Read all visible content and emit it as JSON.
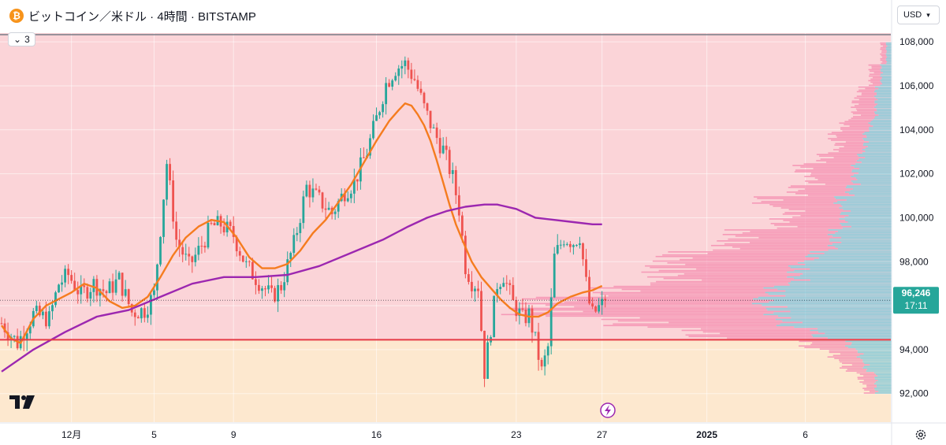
{
  "header": {
    "title": "ビットコイン／米ドル · 4時間 · BITSTAMP",
    "indicator_count": "3",
    "currency": "USD"
  },
  "price_badge": {
    "price": "96,246",
    "countdown": "17:11"
  },
  "colors": {
    "up": "#26a69a",
    "down": "#ef5350",
    "ma_orange": "#f57c1f",
    "ma_purple": "#9c27b0",
    "zone_upper": "#fbd4d8",
    "zone_lower": "#fde8cf",
    "level_line": "#e53945",
    "vp_down": "#f48fb1",
    "vp_up": "#7fc8d8"
  },
  "chart_data": {
    "type": "candlestick",
    "title": "ビットコイン／米ドル · 4時間 · BITSTAMP",
    "xlabel": "",
    "ylabel": "",
    "ylim": [
      90700,
      108400
    ],
    "y_ticks": [
      "92,000",
      "94,000",
      "96,000",
      "98,000",
      "100,000",
      "102,000",
      "104,000",
      "106,000",
      "108,000"
    ],
    "y_tick_values": [
      92000,
      94000,
      96000,
      98000,
      100000,
      102000,
      104000,
      106000,
      108000
    ],
    "x_ticks": [
      "12月",
      "5",
      "9",
      "16",
      "23",
      "27",
      "2025",
      "6"
    ],
    "x_tick_index": [
      22,
      48,
      73,
      118,
      162,
      189,
      222,
      253
    ],
    "last_price": 96246,
    "horizontal_levels": [
      108330,
      94450
    ],
    "background_zone_boundary": 94450,
    "close_path": [
      [
        0,
        95200
      ],
      [
        5,
        94300
      ],
      [
        10,
        95600
      ],
      [
        15,
        95400
      ],
      [
        18,
        97000
      ],
      [
        21,
        97400
      ],
      [
        25,
        96500
      ],
      [
        29,
        97000
      ],
      [
        33,
        96600
      ],
      [
        37,
        97200
      ],
      [
        41,
        95700
      ],
      [
        45,
        95800
      ],
      [
        48,
        96500
      ],
      [
        52,
        102500
      ],
      [
        55,
        99000
      ],
      [
        59,
        97800
      ],
      [
        62,
        98500
      ],
      [
        66,
        99600
      ],
      [
        69,
        99700
      ],
      [
        73,
        99200
      ],
      [
        77,
        97800
      ],
      [
        81,
        97100
      ],
      [
        85,
        96400
      ],
      [
        88,
        96900
      ],
      [
        92,
        98800
      ],
      [
        96,
        101400
      ],
      [
        100,
        100800
      ],
      [
        104,
        100200
      ],
      [
        108,
        101200
      ],
      [
        111,
        101600
      ],
      [
        115,
        103000
      ],
      [
        118,
        104500
      ],
      [
        121,
        106100
      ],
      [
        124,
        106800
      ],
      [
        127,
        107000
      ],
      [
        130,
        106300
      ],
      [
        133,
        105000
      ],
      [
        136,
        103900
      ],
      [
        139,
        103100
      ],
      [
        142,
        101800
      ],
      [
        144,
        100400
      ],
      [
        146,
        97800
      ],
      [
        148,
        97100
      ],
      [
        150,
        96900
      ],
      [
        152,
        93000
      ],
      [
        154,
        95000
      ],
      [
        156,
        97000
      ],
      [
        158,
        97400
      ],
      [
        161,
        96100
      ],
      [
        164,
        95400
      ],
      [
        166,
        95600
      ],
      [
        168,
        94400
      ],
      [
        170,
        93000
      ],
      [
        172,
        94100
      ],
      [
        174,
        98200
      ],
      [
        177,
        99100
      ],
      [
        180,
        98900
      ],
      [
        182,
        99200
      ],
      [
        184,
        97000
      ],
      [
        185,
        96100
      ],
      [
        186,
        95600
      ],
      [
        188,
        95900
      ],
      [
        190,
        96200
      ]
    ],
    "series": [
      {
        "name": "",
        "type": "moving-average",
        "points": [
          [
            0,
            95100
          ],
          [
            3,
            94500
          ],
          [
            6,
            94300
          ],
          [
            10,
            95400
          ],
          [
            14,
            96000
          ],
          [
            18,
            96300
          ],
          [
            22,
            96600
          ],
          [
            26,
            97000
          ],
          [
            30,
            96800
          ],
          [
            34,
            96200
          ],
          [
            38,
            95900
          ],
          [
            42,
            96000
          ],
          [
            46,
            96400
          ],
          [
            50,
            97300
          ],
          [
            54,
            98300
          ],
          [
            58,
            99100
          ],
          [
            62,
            99600
          ],
          [
            66,
            99900
          ],
          [
            70,
            99800
          ],
          [
            74,
            99100
          ],
          [
            78,
            98200
          ],
          [
            82,
            97700
          ],
          [
            86,
            97700
          ],
          [
            90,
            97900
          ],
          [
            94,
            98500
          ],
          [
            98,
            99300
          ],
          [
            102,
            99900
          ],
          [
            106,
            100700
          ],
          [
            110,
            101500
          ],
          [
            114,
            102500
          ],
          [
            118,
            103500
          ],
          [
            122,
            104400
          ],
          [
            125,
            104900
          ],
          [
            127,
            105200
          ],
          [
            129,
            105100
          ],
          [
            131,
            104700
          ],
          [
            133,
            104200
          ],
          [
            135,
            103500
          ],
          [
            137,
            102600
          ],
          [
            139,
            101600
          ],
          [
            141,
            100600
          ],
          [
            143,
            99700
          ],
          [
            145,
            99000
          ],
          [
            148,
            98000
          ],
          [
            151,
            97300
          ],
          [
            154,
            96800
          ],
          [
            157,
            96300
          ],
          [
            160,
            95900
          ],
          [
            163,
            95600
          ],
          [
            166,
            95500
          ],
          [
            169,
            95500
          ],
          [
            172,
            95700
          ],
          [
            175,
            96100
          ],
          [
            179,
            96400
          ],
          [
            183,
            96600
          ],
          [
            186,
            96700
          ],
          [
            189,
            96900
          ]
        ]
      },
      {
        "name": "",
        "type": "moving-average",
        "points": [
          [
            0,
            93000
          ],
          [
            10,
            94000
          ],
          [
            20,
            94800
          ],
          [
            30,
            95500
          ],
          [
            40,
            95800
          ],
          [
            50,
            96400
          ],
          [
            60,
            97000
          ],
          [
            70,
            97300
          ],
          [
            80,
            97300
          ],
          [
            90,
            97400
          ],
          [
            100,
            97800
          ],
          [
            110,
            98400
          ],
          [
            120,
            99000
          ],
          [
            128,
            99600
          ],
          [
            134,
            100000
          ],
          [
            140,
            100300
          ],
          [
            146,
            100500
          ],
          [
            152,
            100600
          ],
          [
            156,
            100600
          ],
          [
            162,
            100400
          ],
          [
            168,
            100000
          ],
          [
            174,
            99900
          ],
          [
            180,
            99800
          ],
          [
            186,
            99700
          ],
          [
            189,
            99700
          ]
        ]
      }
    ],
    "volume_profile": [
      [
        92000,
        2,
        3
      ],
      [
        92500,
        3,
        3
      ],
      [
        93000,
        4,
        5
      ],
      [
        93500,
        5,
        6
      ],
      [
        94000,
        8,
        8
      ],
      [
        94500,
        22,
        14
      ],
      [
        95000,
        30,
        20
      ],
      [
        95500,
        45,
        22
      ],
      [
        96000,
        40,
        24
      ],
      [
        96500,
        30,
        22
      ],
      [
        97000,
        24,
        18
      ],
      [
        97500,
        25,
        18
      ],
      [
        98000,
        26,
        15
      ],
      [
        98500,
        20,
        11
      ],
      [
        99000,
        18,
        11
      ],
      [
        99500,
        12,
        9
      ],
      [
        100000,
        10,
        9
      ],
      [
        100500,
        14,
        10
      ],
      [
        101000,
        10,
        8
      ],
      [
        101500,
        8,
        7
      ],
      [
        102000,
        10,
        7
      ],
      [
        102500,
        7,
        6
      ],
      [
        103000,
        5,
        5
      ],
      [
        103500,
        6,
        5
      ],
      [
        104000,
        5,
        4
      ],
      [
        104500,
        4,
        3
      ],
      [
        105000,
        4,
        3
      ],
      [
        105500,
        3,
        3
      ],
      [
        106000,
        2,
        2
      ],
      [
        106500,
        2,
        2
      ],
      [
        107000,
        1,
        1
      ],
      [
        107500,
        1,
        1
      ]
    ]
  }
}
